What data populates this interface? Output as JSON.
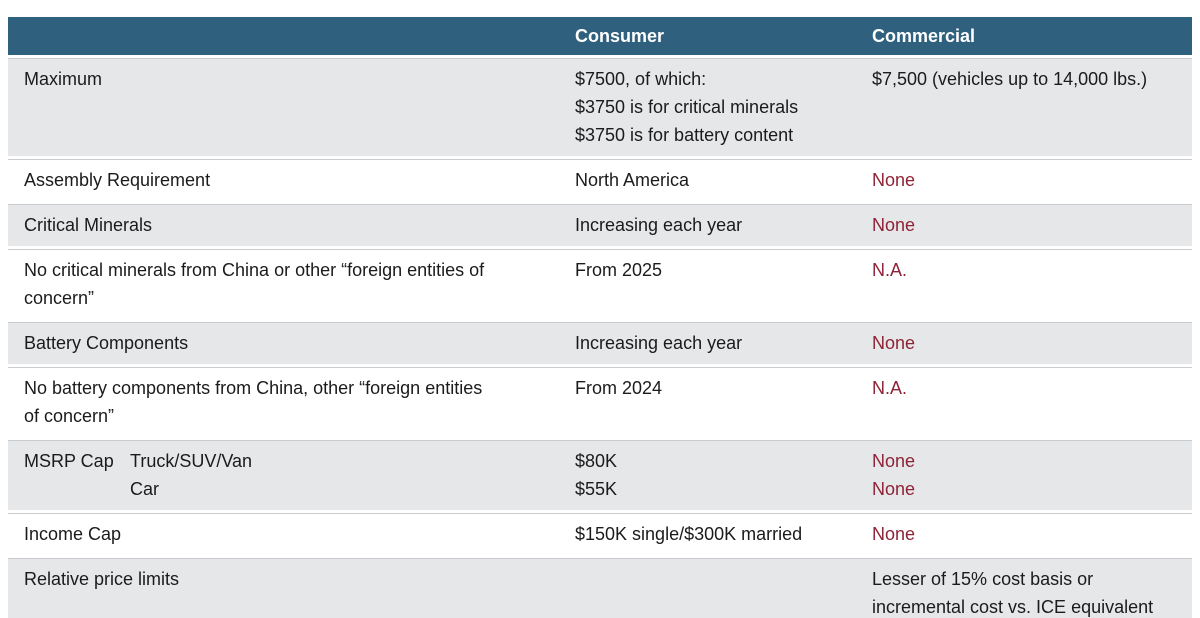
{
  "header": {
    "columns": [
      {
        "id": "label",
        "label": ""
      },
      {
        "id": "consumer",
        "label": "Consumer"
      },
      {
        "id": "commercial",
        "label": "Commercial"
      }
    ]
  },
  "rows": [
    {
      "label": [
        "Maximum"
      ],
      "consumer": [
        "$7500, of which:",
        "$3750 is for critical minerals",
        "$3750 is for battery content"
      ],
      "commercial": [
        "$7,500 (vehicles up to 14,000 lbs.)"
      ],
      "commercial_color": "dark"
    },
    {
      "label": [
        "Assembly Requirement"
      ],
      "consumer": [
        "North America"
      ],
      "commercial": [
        "None"
      ],
      "commercial_color": "red"
    },
    {
      "label": [
        "Critical Minerals"
      ],
      "consumer": [
        "Increasing each year"
      ],
      "commercial": [
        "None"
      ],
      "commercial_color": "red"
    },
    {
      "label": [
        "No critical minerals from China or other “foreign entities of",
        "concern”"
      ],
      "consumer": [
        "From 2025"
      ],
      "commercial": [
        "N.A."
      ],
      "commercial_color": "red"
    },
    {
      "label": [
        "Battery Components"
      ],
      "consumer": [
        "Increasing each year"
      ],
      "commercial": [
        "None"
      ],
      "commercial_color": "red"
    },
    {
      "label": [
        "No battery components from China, other “foreign entities",
        "of concern”"
      ],
      "consumer": [
        "From 2024"
      ],
      "commercial": [
        "N.A."
      ],
      "commercial_color": "red"
    },
    {
      "label_main": "MSRP Cap",
      "label_sub": [
        "Truck/SUV/Van",
        "Car"
      ],
      "consumer": [
        "$80K",
        "$55K"
      ],
      "commercial": [
        "None",
        "None"
      ],
      "commercial_color": "red"
    },
    {
      "label": [
        "Income Cap"
      ],
      "consumer": [
        "$150K single/$300K married"
      ],
      "commercial": [
        "None"
      ],
      "commercial_color": "red"
    },
    {
      "label": [
        "Relative price limits"
      ],
      "consumer": [],
      "commercial": [
        "Lesser of 15% cost basis or",
        "incremental cost vs. ICE equivalent"
      ],
      "commercial_color": "dark"
    }
  ],
  "colors": {
    "header_bg": "#2f617f",
    "header_text": "#ffffff",
    "row_alt_bg": "#e5e7e9",
    "row_bg": "#ffffff",
    "divider": "#c8cbcf",
    "text": "#1b1b1b",
    "negative": "#8e2337"
  }
}
